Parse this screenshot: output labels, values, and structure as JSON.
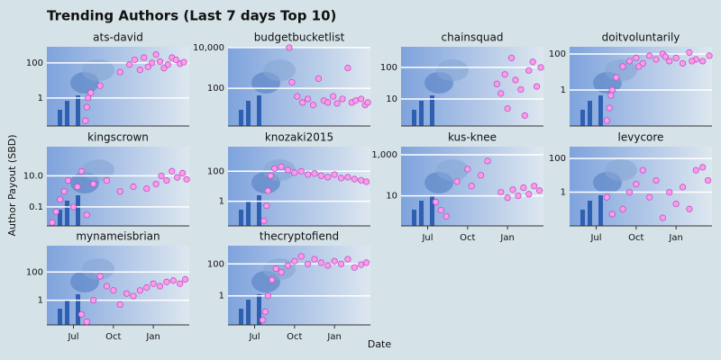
{
  "title": "Trending Authors (Last 7 days Top 10)",
  "x_label": "Date",
  "y_label": "Author Payout (SBD)",
  "xlim": [
    -2,
    8.7
  ],
  "xticks": [
    {
      "value": 0,
      "label": "Jul"
    },
    {
      "value": 3,
      "label": "Oct"
    },
    {
      "value": 6,
      "label": "Jan"
    }
  ],
  "point_color": "#ff99ee",
  "point_edge": "#bb55bb",
  "log_y": true,
  "grid": true,
  "chart_data": [
    {
      "type": "scatter",
      "title": "ats-david",
      "ylim": [
        0.025,
        830
      ],
      "yticks": [
        1,
        100
      ],
      "x": [
        0.9,
        1.0,
        1.1,
        1.3,
        2.0,
        3.5,
        4.2,
        4.6,
        5.0,
        5.3,
        5.6,
        5.9,
        6.2,
        6.5,
        6.8,
        7.1,
        7.4,
        7.7,
        8.0,
        8.3
      ],
      "values": [
        0.05,
        0.3,
        1,
        2,
        5,
        30,
        80,
        150,
        40,
        200,
        60,
        100,
        300,
        120,
        50,
        80,
        200,
        150,
        90,
        110
      ]
    },
    {
      "type": "scatter",
      "title": "budgetbucketlist",
      "ylim": [
        1.4,
        11000
      ],
      "yticks": [
        100,
        {
          "value": 10000,
          "label": "10,000"
        }
      ],
      "x": [
        2.6,
        2.8,
        3.2,
        3.6,
        4.0,
        4.4,
        4.8,
        5.2,
        5.5,
        5.9,
        6.2,
        6.6,
        7.0,
        7.3,
        7.6,
        8.0,
        8.3,
        8.5
      ],
      "values": [
        10000,
        200,
        40,
        20,
        30,
        15,
        300,
        25,
        20,
        40,
        18,
        30,
        1000,
        20,
        25,
        30,
        15,
        20
      ]
    },
    {
      "type": "scatter",
      "title": "chainsquad",
      "ylim": [
        1.4,
        450
      ],
      "yticks": [
        10,
        100
      ],
      "x": [
        5.2,
        5.5,
        5.8,
        6.0,
        6.3,
        6.6,
        7.0,
        7.3,
        7.6,
        7.9,
        8.2,
        8.5
      ],
      "values": [
        30,
        15,
        60,
        5,
        200,
        40,
        20,
        3,
        80,
        150,
        25,
        100
      ]
    },
    {
      "type": "scatter",
      "title": "doitvoluntarily",
      "ylim": [
        0.01,
        250
      ],
      "yticks": [
        1,
        100
      ],
      "x": [
        0.8,
        1.0,
        1.2,
        1.5,
        2.0,
        2.5,
        3.0,
        3.5,
        4.0,
        4.5,
        5.0,
        5.5,
        6.0,
        6.5,
        7.0,
        7.5,
        8.0,
        8.5,
        1.1,
        3.2,
        5.2,
        7.2
      ],
      "values": [
        0.02,
        0.1,
        1,
        5,
        20,
        40,
        60,
        30,
        80,
        50,
        100,
        40,
        60,
        30,
        120,
        50,
        40,
        80,
        0.5,
        20,
        70,
        40
      ]
    },
    {
      "type": "scatter",
      "title": "kingscrown",
      "ylim": [
        0.006,
        760
      ],
      "yticks": [
        0.1,
        {
          "value": 10,
          "label": "10.0"
        }
      ],
      "x": [
        -1.6,
        -1.3,
        -1.0,
        -0.7,
        -0.4,
        0,
        0.3,
        0.6,
        1.0,
        1.5,
        2.5,
        3.5,
        4.5,
        5.5,
        6.2,
        6.6,
        7.0,
        7.4,
        7.8,
        8.2,
        8.5
      ],
      "values": [
        0.01,
        0.05,
        0.3,
        1,
        5,
        0.1,
        2,
        20,
        0.03,
        3,
        5,
        1,
        2,
        1.5,
        3,
        10,
        5,
        20,
        8,
        15,
        6
      ]
    },
    {
      "type": "scatter",
      "title": "knozaki2015",
      "ylim": [
        0.023,
        4300
      ],
      "yticks": [
        1,
        100
      ],
      "x": [
        0.7,
        0.9,
        1.0,
        1.2,
        1.5,
        2.0,
        2.5,
        3.0,
        3.5,
        4.0,
        4.5,
        5.0,
        5.5,
        6.0,
        6.5,
        7.0,
        7.5,
        8.0,
        8.4
      ],
      "values": [
        0.05,
        0.5,
        5,
        50,
        150,
        200,
        120,
        80,
        100,
        60,
        70,
        50,
        40,
        60,
        35,
        40,
        30,
        25,
        20
      ]
    },
    {
      "type": "scatter",
      "title": "kus-knee",
      "ylim": [
        0.34,
        2500
      ],
      "yticks": [
        10,
        {
          "value": 1000,
          "label": "1,000"
        }
      ],
      "x": [
        0.6,
        1.0,
        1.4,
        2.2,
        3.0,
        3.3,
        4.0,
        4.5,
        5.5,
        6.0,
        6.4,
        6.8,
        7.2,
        7.6,
        8.0,
        8.4
      ],
      "values": [
        5,
        2,
        1,
        50,
        200,
        30,
        100,
        500,
        15,
        8,
        20,
        10,
        25,
        12,
        30,
        18
      ]
    },
    {
      "type": "scatter",
      "title": "levycore",
      "ylim": [
        0.01,
        500
      ],
      "yticks": [
        1,
        100
      ],
      "x": [
        0.8,
        1.2,
        2.0,
        2.5,
        3.0,
        3.5,
        4.0,
        4.5,
        5.0,
        5.5,
        6.0,
        6.5,
        7.0,
        7.5,
        8.0,
        8.4
      ],
      "values": [
        0.5,
        0.05,
        0.1,
        1,
        3,
        20,
        0.5,
        5,
        0.03,
        1,
        0.2,
        2,
        0.1,
        20,
        30,
        5
      ]
    },
    {
      "type": "scatter",
      "title": "mynameisbrian",
      "ylim": [
        0.018,
        7400
      ],
      "yticks": [
        1,
        100
      ],
      "x": [
        0.6,
        1.0,
        1.5,
        2.0,
        2.5,
        3.0,
        3.5,
        4.0,
        4.5,
        5.0,
        5.5,
        6.0,
        6.5,
        7.0,
        7.5,
        8.0,
        8.4
      ],
      "values": [
        0.1,
        0.03,
        1,
        50,
        10,
        5,
        0.5,
        3,
        2,
        5,
        8,
        15,
        10,
        20,
        25,
        15,
        30
      ]
    },
    {
      "type": "scatter",
      "title": "thecryptofiend",
      "ylim": [
        0.015,
        1400
      ],
      "yticks": [
        1,
        100
      ],
      "x": [
        0.6,
        0.8,
        1.0,
        1.3,
        1.6,
        2.0,
        2.5,
        3.0,
        3.5,
        4.0,
        4.5,
        5.0,
        5.5,
        6.0,
        6.5,
        7.0,
        7.5,
        8.0,
        8.4
      ],
      "values": [
        0.03,
        0.1,
        1,
        10,
        50,
        30,
        80,
        150,
        300,
        100,
        200,
        120,
        80,
        150,
        100,
        200,
        60,
        90,
        120
      ]
    }
  ]
}
